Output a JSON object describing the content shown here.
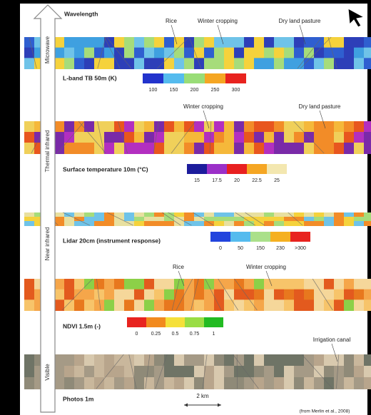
{
  "header": {
    "axis_label": "Wavelength",
    "bands": [
      "Microwave",
      "Thermal infrared",
      "Near infrared",
      "Visible"
    ]
  },
  "panels": [
    {
      "annotations": [
        "Rice",
        "Winter cropping",
        "Dry land pasture"
      ],
      "caption": "L-band TB 50m (K)",
      "scale_labels": [
        "100",
        "150",
        "200",
        "250",
        "300"
      ]
    },
    {
      "annotations": [
        "Winter cropping",
        "Dry land pasture"
      ],
      "caption": "Surface temperature 10m (°C)",
      "scale_labels": [
        "15",
        "17.5",
        "20",
        "22.5",
        "25"
      ]
    },
    {
      "caption": "Lidar 20cm (instrument response)",
      "scale_labels": [
        "0",
        "50",
        "150",
        "230",
        ">300"
      ]
    },
    {
      "annotations": [
        "Rice",
        "Winter cropping"
      ],
      "caption": "NDVI 1.5m (-)",
      "scale_labels": [
        "0",
        "0.25",
        "0.5",
        "0.75",
        "1"
      ]
    },
    {
      "annotations": [
        "Irrigation canal"
      ],
      "caption": "Photos 1m"
    }
  ],
  "scale_bar": "2 km",
  "credit": "(from Merlin et al., 2008)"
}
